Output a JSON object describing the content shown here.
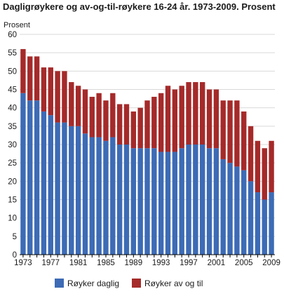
{
  "chart_data": {
    "type": "bar",
    "stacked": true,
    "title": "Dagligrøykere og av-og-til-røykere 16-24 år. 1973-2009. Prosent",
    "ylabel": "Prosent",
    "xlabel": "",
    "ylim": [
      0,
      60
    ],
    "yticks": [
      0,
      5,
      10,
      15,
      20,
      25,
      30,
      35,
      40,
      45,
      50,
      55,
      60
    ],
    "xtick_labels": [
      "1973",
      "1977",
      "1981",
      "1985",
      "1989",
      "1993",
      "1997",
      "2001",
      "2005",
      "2009"
    ],
    "grid": true,
    "legend_position": "bottom",
    "categories": [
      "1973",
      "1974",
      "1975",
      "1976",
      "1977",
      "1978",
      "1979",
      "1980",
      "1981",
      "1982",
      "1983",
      "1984",
      "1985",
      "1986",
      "1987",
      "1988",
      "1989",
      "1990",
      "1991",
      "1992",
      "1993",
      "1994",
      "1995",
      "1996",
      "1997",
      "1998",
      "1999",
      "2000",
      "2001",
      "2002",
      "2003",
      "2004",
      "2005",
      "2006",
      "2007",
      "2008",
      "2009"
    ],
    "series": [
      {
        "name": "Røyker daglig",
        "color": "#3d6bb5",
        "values": [
          44,
          42,
          42,
          39,
          38,
          36,
          36,
          35,
          35,
          33,
          32,
          32,
          31,
          32,
          30,
          30,
          29,
          29,
          29,
          29,
          28,
          28,
          28,
          29,
          30,
          30,
          30,
          29,
          29,
          26,
          25,
          24,
          23,
          20,
          17,
          15,
          17
        ]
      },
      {
        "name": "Røyker av og til",
        "color": "#a52a2a",
        "values": [
          12,
          12,
          12,
          12,
          13,
          14,
          14,
          12,
          11,
          12,
          11,
          12,
          11,
          12,
          11,
          11,
          10,
          11,
          13,
          14,
          16,
          18,
          17,
          17,
          17,
          17,
          17,
          16,
          16,
          16,
          17,
          18,
          16,
          15,
          14,
          14,
          14
        ]
      }
    ]
  },
  "colors": {
    "background": "#ffffff",
    "grid": "#d9d9d9",
    "axis": "#000000"
  }
}
